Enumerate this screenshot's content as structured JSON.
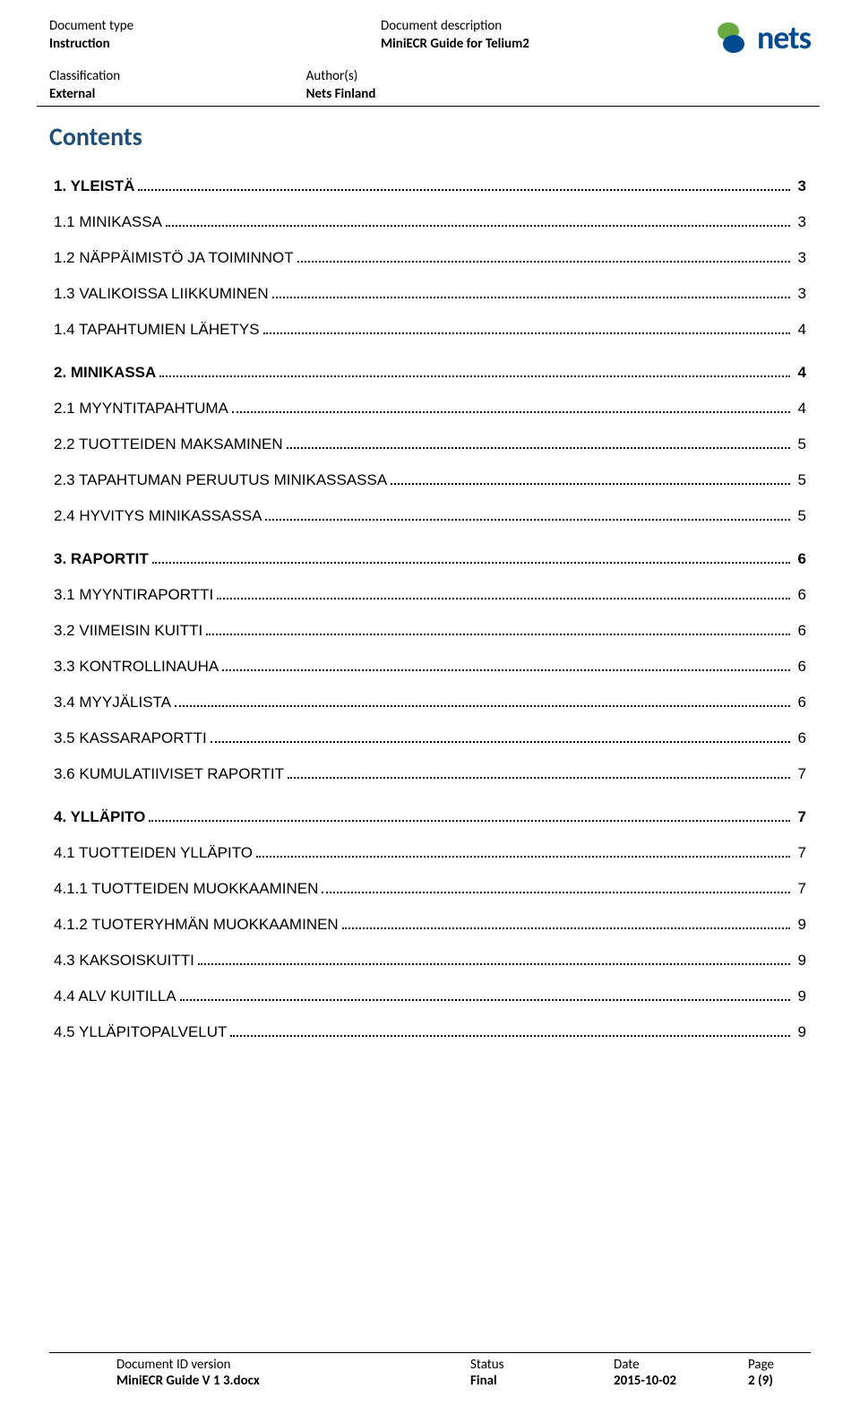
{
  "header": {
    "doc_type_label": "Document type",
    "doc_type_value": "Instruction",
    "doc_desc_label": "Document description",
    "doc_desc_value": "MiniECR Guide for Telium2",
    "classification_label": "Classification",
    "classification_value": "External",
    "authors_label": "Author(s)",
    "authors_value": "Nets Finland",
    "logo_text": "nets"
  },
  "contents_title": "Contents",
  "contents_title_color": "#1f4e79",
  "toc": [
    {
      "level": 1,
      "label": "1. YLEISTÄ",
      "page": "3"
    },
    {
      "level": 2,
      "label": "1.1 MINIKASSA",
      "page": "3"
    },
    {
      "level": 2,
      "label": "1.2 NÄPPÄIMISTÖ JA TOIMINNOT",
      "page": "3"
    },
    {
      "level": 2,
      "label": "1.3 VALIKOISSA LIIKKUMINEN",
      "page": "3"
    },
    {
      "level": 2,
      "label": "1.4 TAPAHTUMIEN LÄHETYS",
      "page": "4"
    },
    {
      "level": 1,
      "label": "2. MINIKASSA",
      "page": "4"
    },
    {
      "level": 2,
      "label": "2.1 MYYNTITAPAHTUMA",
      "page": "4"
    },
    {
      "level": 2,
      "label": "2.2 TUOTTEIDEN MAKSAMINEN",
      "page": "5"
    },
    {
      "level": 2,
      "label": "2.3 TAPAHTUMAN PERUUTUS MINIKASSASSA",
      "page": "5"
    },
    {
      "level": 2,
      "label": "2.4 HYVITYS MINIKASSASSA",
      "page": "5"
    },
    {
      "level": 1,
      "label": "3. RAPORTIT",
      "page": "6"
    },
    {
      "level": 2,
      "label": "3.1 MYYNTIRAPORTTI",
      "page": "6"
    },
    {
      "level": 2,
      "label": "3.2 VIIMEISIN KUITTI",
      "page": "6"
    },
    {
      "level": 2,
      "label": "3.3 KONTROLLINAUHA",
      "page": "6"
    },
    {
      "level": 2,
      "label": "3.4 MYYJÄLISTA",
      "page": "6"
    },
    {
      "level": 2,
      "label": "3.5 KASSARAPORTTI",
      "page": "6"
    },
    {
      "level": 2,
      "label": "3.6 KUMULATIIVISET RAPORTIT",
      "page": "7"
    },
    {
      "level": 1,
      "label": "4. YLLÄPITO",
      "page": "7"
    },
    {
      "level": 2,
      "label": "4.1 TUOTTEIDEN YLLÄPITO",
      "page": "7"
    },
    {
      "level": 2,
      "label": "4.1.1 TUOTTEIDEN MUOKKAAMINEN",
      "page": "7"
    },
    {
      "level": 2,
      "label": "4.1.2 TUOTERYHMÄN MUOKKAAMINEN",
      "page": "9"
    },
    {
      "level": 2,
      "label": "4.3 KAKSOISKUITTI",
      "page": "9"
    },
    {
      "level": 2,
      "label": "4.4 ALV KUITILLA",
      "page": "9"
    },
    {
      "level": 2,
      "label": "4.5 YLLÄPITOPALVELUT",
      "page": "9"
    }
  ],
  "footer": {
    "doc_id_label": "Document ID version",
    "doc_id_value": "MiniECR Guide V 1 3.docx",
    "status_label": "Status",
    "status_value": "Final",
    "date_label": "Date",
    "date_value": "2015-10-02",
    "page_label": "Page",
    "page_value": "2 (9)"
  },
  "logo_colors": {
    "blue": "#004a8f",
    "green": "#6aa842"
  }
}
